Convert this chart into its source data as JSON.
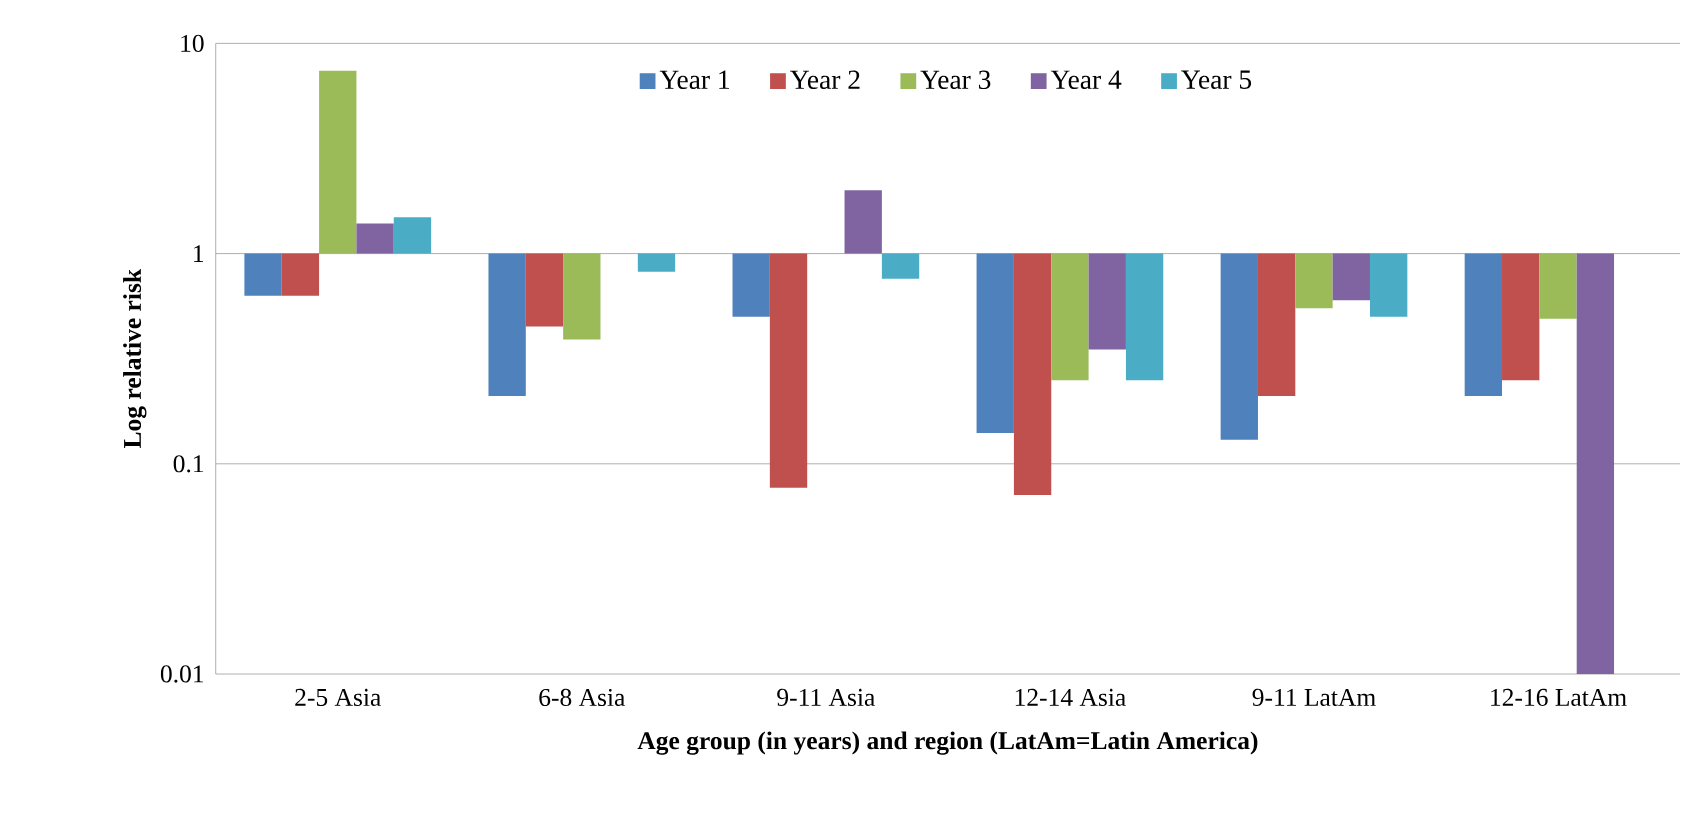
{
  "chart_data": {
    "type": "bar",
    "xlabel": "Age group (in years) and region (LatAm=Latin America)",
    "ylabel": "Log relative risk",
    "categories": [
      "2-5 Asia",
      "6-8 Asia",
      "9-11 Asia",
      "12-14 Asia",
      "9-11 LatAm",
      "12-16 LatAm"
    ],
    "series": [
      {
        "name": "Year 1",
        "color": "#4f81bd",
        "base": [
          1,
          1,
          1,
          1,
          1,
          1
        ],
        "values": [
          -0.37,
          -0.79,
          -0.5,
          -0.86,
          -0.87,
          -0.79
        ]
      },
      {
        "name": "Year 2",
        "color": "#c0504d",
        "base": [
          1,
          1,
          1,
          1,
          1,
          1
        ],
        "values": [
          -0.37,
          -0.55,
          -0.923,
          -0.929,
          -0.79,
          -0.75
        ]
      },
      {
        "name": "Year 3",
        "color": "#9bbb59",
        "base": [
          1,
          1,
          null,
          1,
          1,
          1
        ],
        "values": [
          6.4,
          -0.61,
          null,
          -0.75,
          -0.45,
          -0.51
        ]
      },
      {
        "name": "Year 4",
        "color": "#8064a2",
        "base": [
          1,
          null,
          1,
          1,
          1,
          1
        ],
        "values": [
          0.39,
          null,
          1.0,
          -0.65,
          -0.4,
          -0.99
        ]
      },
      {
        "name": "Year 5",
        "color": "#4bacc6",
        "base": [
          1,
          1,
          1,
          1,
          1,
          null
        ],
        "values": [
          0.49,
          -0.18,
          -0.24,
          -0.75,
          -0.5,
          null
        ]
      }
    ],
    "log": "y",
    "ylim": [
      0.01,
      10
    ],
    "yticks": [
      0.01,
      0.1,
      1,
      10
    ],
    "grid": "y",
    "legend": "top"
  }
}
